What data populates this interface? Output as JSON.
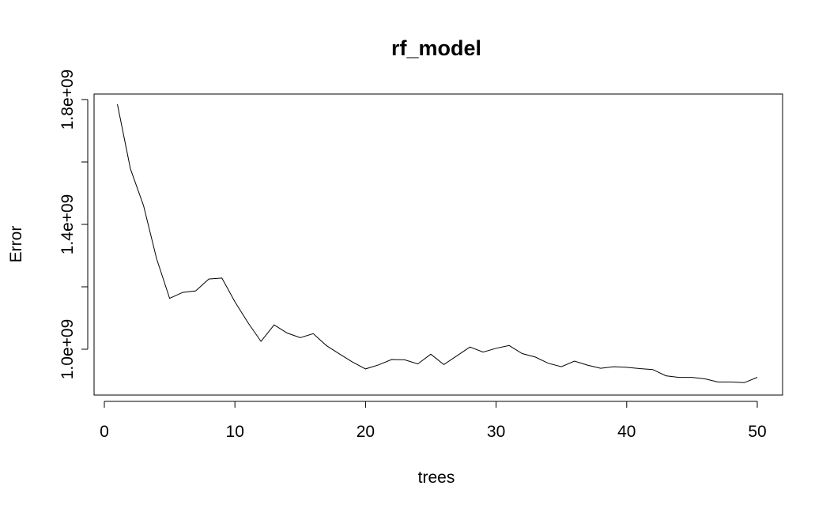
{
  "chart_data": {
    "type": "line",
    "title": "rf_model",
    "xlabel": "trees",
    "ylabel": "Error",
    "xlim": [
      0,
      50
    ],
    "ylim": [
      880000000,
      1850000000
    ],
    "x_ticks": [
      0,
      10,
      20,
      30,
      40,
      50
    ],
    "x_tick_labels": [
      "0",
      "10",
      "20",
      "30",
      "40",
      "50"
    ],
    "y_ticks": [
      1000000000,
      1200000000,
      1400000000,
      1600000000,
      1800000000
    ],
    "y_tick_labels": [
      "1.0e+09",
      "",
      "1.4e+09",
      "",
      "1.8e+09"
    ],
    "grid": false,
    "series": [
      {
        "x": [
          1,
          2,
          3,
          4,
          5,
          6,
          7,
          8,
          9,
          10,
          11,
          12,
          13,
          14,
          15,
          16,
          17,
          18,
          19,
          20,
          21,
          22,
          23,
          24,
          25,
          26,
          27,
          28,
          29,
          30,
          31,
          32,
          33,
          34,
          35,
          36,
          37,
          38,
          39,
          40,
          41,
          42,
          43,
          44,
          45,
          46,
          47,
          48,
          49,
          50
        ],
        "values": [
          1785000000,
          1578000000,
          1460000000,
          1290000000,
          1163000000,
          1182000000,
          1187000000,
          1225000000,
          1228000000,
          1152000000,
          1085000000,
          1025000000,
          1078000000,
          1052000000,
          1037000000,
          1050000000,
          1012000000,
          985000000,
          959000000,
          937000000,
          950000000,
          967000000,
          966000000,
          953000000,
          984000000,
          951000000,
          979000000,
          1007000000,
          991000000,
          1003000000,
          1012000000,
          986000000,
          975000000,
          955000000,
          944000000,
          962000000,
          949000000,
          939000000,
          944000000,
          942000000,
          938000000,
          935000000,
          915000000,
          910000000,
          910000000,
          905000000,
          895000000,
          895000000,
          893000000,
          910000000
        ]
      }
    ]
  }
}
